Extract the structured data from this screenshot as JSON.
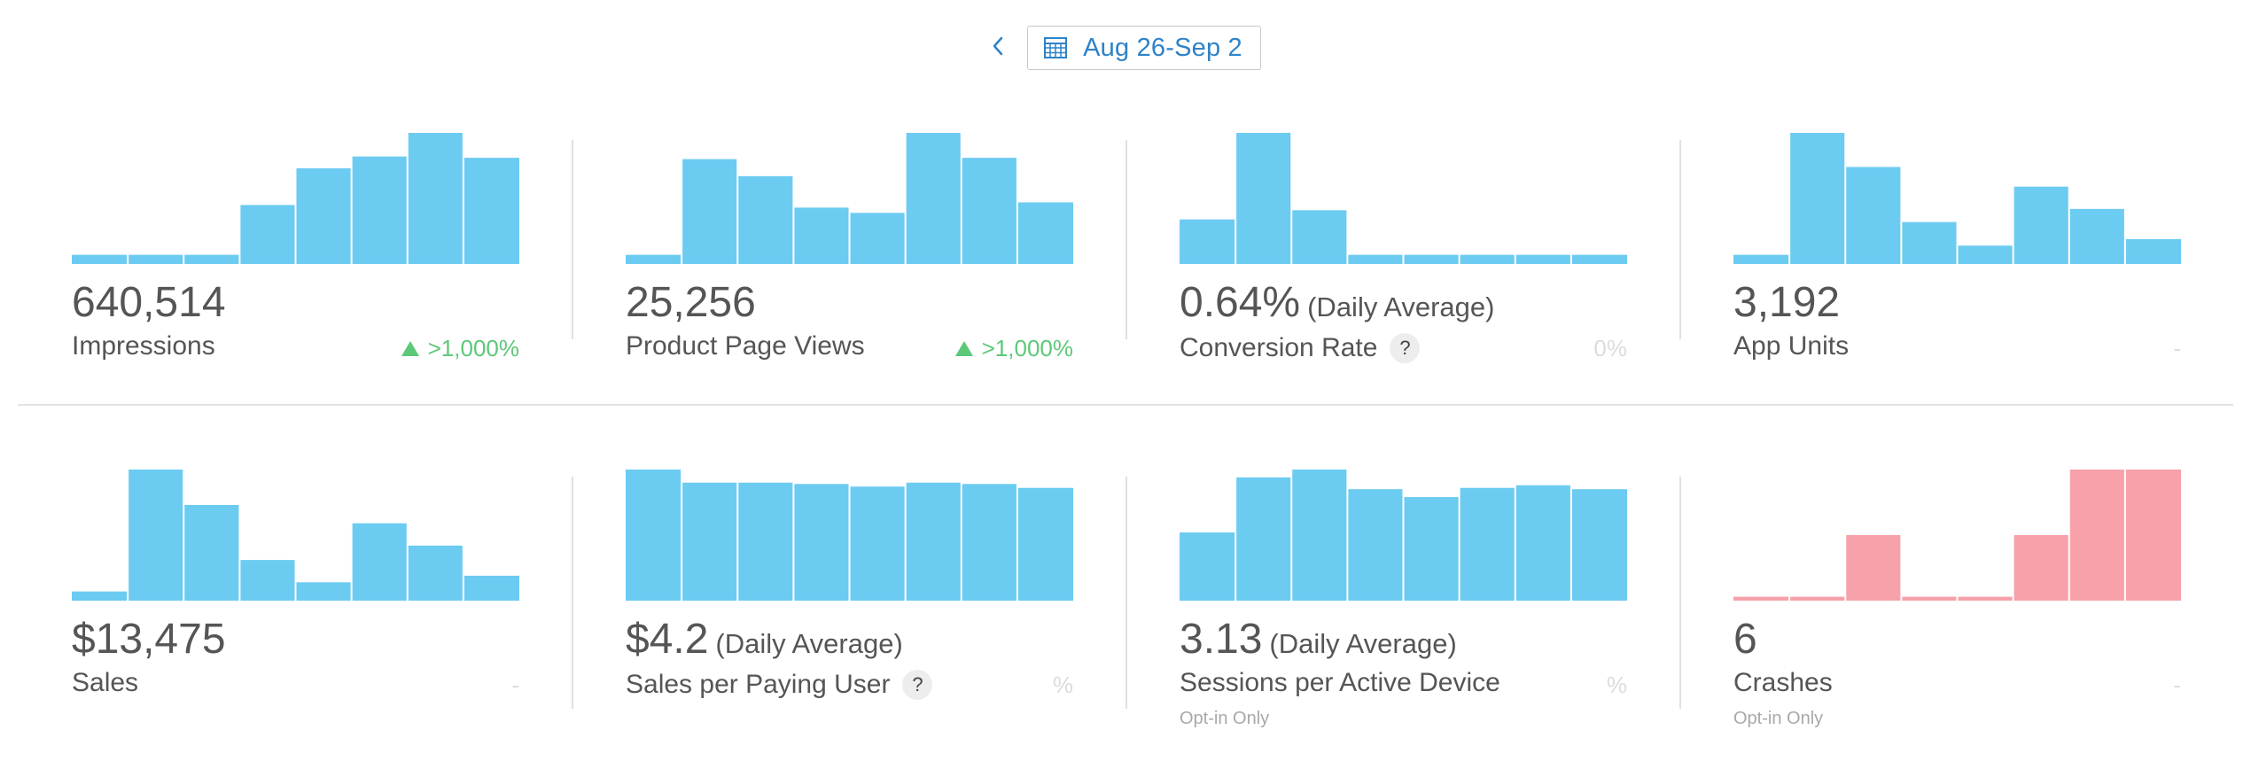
{
  "date_picker": {
    "range_label": "Aug 26-Sep 2",
    "prev_icon": "chevron-left-icon",
    "calendar_icon": "calendar-icon",
    "accent_color": "#2e82c8"
  },
  "colors": {
    "bar_blue": "#6ccbf1",
    "bar_red": "#f7a1aa",
    "increase_green": "#5dc878"
  },
  "metrics": [
    {
      "value": "640,514",
      "suffix": "",
      "label": "Impressions",
      "help": false,
      "change": ">1,000%",
      "change_direction": "up",
      "opt_in": "",
      "bar_color": "#6ccbf1",
      "bars": [
        0.07,
        0.07,
        0.07,
        0.45,
        0.73,
        0.82,
        1.0,
        0.81
      ]
    },
    {
      "value": "25,256",
      "suffix": "",
      "label": "Product Page Views",
      "help": false,
      "change": ">1,000%",
      "change_direction": "up",
      "opt_in": "",
      "bar_color": "#6ccbf1",
      "bars": [
        0.07,
        0.8,
        0.67,
        0.43,
        0.39,
        1.0,
        0.81,
        0.47
      ]
    },
    {
      "value": "0.64%",
      "suffix": "(Daily Average)",
      "label": "Conversion Rate",
      "help": true,
      "help_label": "?",
      "change": "0%",
      "change_direction": "neutral",
      "opt_in": "",
      "bar_color": "#6ccbf1",
      "bars": [
        0.34,
        1.0,
        0.41,
        0.07,
        0.07,
        0.07,
        0.07,
        0.07
      ]
    },
    {
      "value": "3,192",
      "suffix": "",
      "label": "App Units",
      "help": false,
      "change": "-",
      "change_direction": "neutral",
      "opt_in": "",
      "bar_color": "#6ccbf1",
      "bars": [
        0.07,
        1.0,
        0.74,
        0.32,
        0.14,
        0.59,
        0.42,
        0.19
      ]
    },
    {
      "value": "$13,475",
      "suffix": "",
      "label": "Sales",
      "help": false,
      "change": "-",
      "change_direction": "neutral",
      "opt_in": "",
      "bar_color": "#6ccbf1",
      "bars": [
        0.07,
        1.0,
        0.73,
        0.31,
        0.14,
        0.59,
        0.42,
        0.19
      ]
    },
    {
      "value": "$4.2",
      "suffix": "(Daily Average)",
      "label": "Sales per Paying User",
      "help": true,
      "help_label": "?",
      "change": "%",
      "change_direction": "neutral",
      "opt_in": "",
      "bar_color": "#6ccbf1",
      "bars": [
        1.0,
        0.9,
        0.9,
        0.89,
        0.87,
        0.9,
        0.89,
        0.86
      ]
    },
    {
      "value": "3.13",
      "suffix": "(Daily Average)",
      "label": "Sessions per Active Device",
      "help": false,
      "change": "%",
      "change_direction": "neutral",
      "opt_in": "Opt-in Only",
      "bar_color": "#6ccbf1",
      "bars": [
        0.52,
        0.94,
        1.0,
        0.85,
        0.79,
        0.86,
        0.88,
        0.85
      ]
    },
    {
      "value": "6",
      "suffix": "",
      "label": "Crashes",
      "help": false,
      "change": "-",
      "change_direction": "neutral",
      "opt_in": "Opt-in Only",
      "bar_color": "#f7a1aa",
      "bars": [
        0.03,
        0.03,
        0.5,
        0.03,
        0.03,
        0.5,
        1.0,
        1.0
      ]
    }
  ]
}
